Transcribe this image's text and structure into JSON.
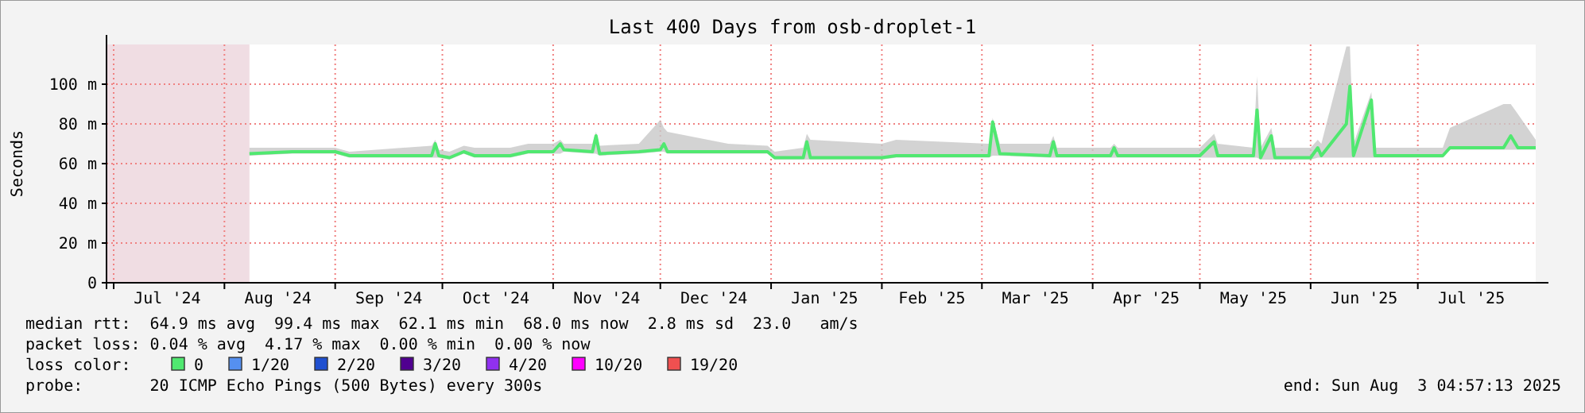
{
  "chart_data": {
    "type": "line",
    "title": "Last 400 Days from osb-droplet-1",
    "ylabel": "Seconds",
    "xlim": [
      "2024-06-29",
      "2025-08-03"
    ],
    "xticks": [
      {
        "value": "2024-07-01",
        "label": null
      },
      {
        "value": "2024-07-16",
        "label": "Jul '24"
      },
      {
        "value": "2024-08-01",
        "label": null
      },
      {
        "value": "2024-08-16",
        "label": "Aug '24"
      },
      {
        "value": "2024-09-01",
        "label": null
      },
      {
        "value": "2024-09-16",
        "label": "Sep '24"
      },
      {
        "value": "2024-10-01",
        "label": null
      },
      {
        "value": "2024-10-16",
        "label": "Oct '24"
      },
      {
        "value": "2024-11-01",
        "label": null
      },
      {
        "value": "2024-11-16",
        "label": "Nov '24"
      },
      {
        "value": "2024-12-01",
        "label": null
      },
      {
        "value": "2024-12-16",
        "label": "Dec '24"
      },
      {
        "value": "2025-01-01",
        "label": null
      },
      {
        "value": "2025-01-16",
        "label": "Jan '25"
      },
      {
        "value": "2025-02-01",
        "label": null
      },
      {
        "value": "2025-02-15",
        "label": "Feb '25"
      },
      {
        "value": "2025-03-01",
        "label": null
      },
      {
        "value": "2025-03-16",
        "label": "Mar '25"
      },
      {
        "value": "2025-04-01",
        "label": null
      },
      {
        "value": "2025-04-16",
        "label": "Apr '25"
      },
      {
        "value": "2025-05-01",
        "label": null
      },
      {
        "value": "2025-05-16",
        "label": "May '25"
      },
      {
        "value": "2025-06-01",
        "label": null
      },
      {
        "value": "2025-06-16",
        "label": "Jun '25"
      },
      {
        "value": "2025-07-01",
        "label": null
      },
      {
        "value": "2025-07-16",
        "label": "Jul '25"
      }
    ],
    "ylim": [
      0,
      120
    ],
    "yticks": [
      0,
      {
        "value": 20,
        "label": "20 m"
      },
      {
        "value": 40,
        "label": "40 m"
      },
      {
        "value": 60,
        "label": "60 m"
      },
      {
        "value": 80,
        "label": "80 m"
      },
      {
        "value": 100,
        "label": "100 m"
      }
    ],
    "grid": true,
    "legend": "bottom",
    "legend_title": "loss color:",
    "bands": [
      {
        "axis": "x",
        "from": "2024-06-29",
        "to": "2024-08-08",
        "color": "#f0dde3"
      }
    ],
    "x": [
      "2024-08-08",
      "2024-08-20",
      "2024-09-01",
      "2024-09-05",
      "2024-09-20",
      "2024-09-28",
      "2024-09-29",
      "2024-09-30",
      "2024-10-03",
      "2024-10-07",
      "2024-10-10",
      "2024-10-20",
      "2024-10-25",
      "2024-11-01",
      "2024-11-03",
      "2024-11-04",
      "2024-11-12",
      "2024-11-13",
      "2024-11-14",
      "2024-11-25",
      "2024-12-01",
      "2024-12-02",
      "2024-12-03",
      "2024-12-20",
      "2024-12-31",
      "2025-01-02",
      "2025-01-10",
      "2025-01-11",
      "2025-01-12",
      "2025-02-01",
      "2025-02-05",
      "2025-03-03",
      "2025-03-04",
      "2025-03-06",
      "2025-03-20",
      "2025-03-21",
      "2025-03-22",
      "2025-04-06",
      "2025-04-07",
      "2025-04-08",
      "2025-05-01",
      "2025-05-05",
      "2025-05-06",
      "2025-05-16",
      "2025-05-17",
      "2025-05-18",
      "2025-05-21",
      "2025-05-22",
      "2025-06-01",
      "2025-06-03",
      "2025-06-04",
      "2025-06-11",
      "2025-06-12",
      "2025-06-13",
      "2025-06-18",
      "2025-06-19",
      "2025-07-08",
      "2025-07-10",
      "2025-07-25",
      "2025-07-27",
      "2025-07-29",
      "2025-08-03"
    ],
    "series": [
      {
        "name": "0",
        "color": "#50e870",
        "values": [
          65,
          66,
          66,
          64,
          64,
          64,
          70,
          64,
          63,
          66,
          64,
          64,
          66,
          66,
          70,
          67,
          66,
          74,
          65,
          66,
          67,
          70,
          66,
          66,
          66,
          63,
          63,
          71,
          63,
          63,
          64,
          64,
          81,
          65,
          64,
          71,
          64,
          64,
          68,
          64,
          64,
          71,
          64,
          64,
          87,
          63,
          74,
          63,
          63,
          68,
          64,
          80,
          99,
          64,
          92,
          64,
          64,
          68,
          68,
          74,
          68,
          68
        ],
        "lower": [
          64,
          65,
          65,
          63,
          63,
          63,
          63,
          63,
          62,
          65,
          63,
          63,
          65,
          65,
          65,
          66,
          65,
          65,
          64,
          65,
          66,
          66,
          65,
          65,
          65,
          62,
          62,
          62,
          62,
          62,
          63,
          63,
          64,
          64,
          63,
          63,
          63,
          63,
          63,
          63,
          63,
          63,
          63,
          63,
          63,
          62,
          62,
          62,
          62,
          63,
          63,
          63,
          63,
          63,
          63,
          63,
          63,
          67,
          67,
          67,
          67,
          67
        ],
        "upper": [
          68,
          68,
          68,
          66,
          68,
          69,
          72,
          67,
          66,
          69,
          68,
          68,
          70,
          70,
          72,
          70,
          70,
          76,
          69,
          70,
          82,
          78,
          76,
          70,
          69,
          66,
          68,
          75,
          72,
          70,
          72,
          70,
          83,
          70,
          70,
          74,
          68,
          68,
          70,
          68,
          68,
          75,
          70,
          68,
          104,
          68,
          78,
          68,
          68,
          72,
          70,
          119,
          119,
          70,
          96,
          68,
          68,
          78,
          90,
          90,
          85,
          72
        ]
      },
      {
        "name": "1/20",
        "color": "#5590f0",
        "values": [
          null,
          null,
          null,
          null,
          null,
          null,
          null,
          null,
          null,
          null,
          null,
          null,
          null,
          null,
          null,
          null,
          null,
          null,
          null,
          null,
          null,
          null,
          null,
          null,
          null,
          null,
          null,
          null,
          null,
          null,
          null,
          null,
          null,
          null,
          null,
          null,
          null,
          null,
          null,
          null,
          null,
          null,
          null,
          null,
          null,
          null,
          null,
          null,
          null,
          null,
          null,
          null,
          null,
          null,
          null,
          null,
          null,
          null,
          null,
          null,
          null,
          null
        ]
      },
      {
        "name": "2/20",
        "color": "#2050d0",
        "values": [
          null,
          null,
          null,
          null,
          null,
          null,
          null,
          null,
          null,
          null,
          null,
          null,
          null,
          null,
          null,
          null,
          null,
          null,
          null,
          null,
          null,
          null,
          null,
          null,
          null,
          null,
          null,
          null,
          null,
          null,
          null,
          null,
          null,
          null,
          null,
          null,
          null,
          null,
          null,
          null,
          null,
          null,
          null,
          null,
          null,
          null,
          null,
          null,
          null,
          null,
          null,
          null,
          null,
          null,
          null,
          null,
          null,
          null,
          null,
          null,
          null,
          null
        ]
      },
      {
        "name": "3/20",
        "color": "#500090",
        "values": [
          null,
          null,
          null,
          null,
          null,
          null,
          null,
          null,
          null,
          null,
          null,
          null,
          null,
          null,
          null,
          null,
          null,
          null,
          null,
          null,
          null,
          null,
          null,
          null,
          null,
          null,
          null,
          null,
          null,
          null,
          null,
          null,
          null,
          null,
          null,
          null,
          null,
          null,
          null,
          null,
          null,
          null,
          null,
          null,
          null,
          null,
          null,
          null,
          null,
          null,
          null,
          null,
          null,
          null,
          null,
          null,
          null,
          null,
          null,
          null,
          null,
          null
        ]
      },
      {
        "name": "4/20",
        "color": "#9030f0",
        "values": [
          null,
          null,
          null,
          null,
          null,
          null,
          null,
          null,
          null,
          null,
          null,
          null,
          null,
          null,
          null,
          null,
          null,
          null,
          null,
          null,
          null,
          null,
          null,
          null,
          null,
          null,
          null,
          null,
          null,
          null,
          null,
          null,
          null,
          null,
          null,
          null,
          null,
          null,
          null,
          null,
          null,
          null,
          null,
          null,
          null,
          null,
          null,
          null,
          null,
          null,
          null,
          null,
          null,
          null,
          null,
          null,
          null,
          null,
          null,
          null,
          null,
          null
        ]
      },
      {
        "name": "10/20",
        "color": "#ff00ff",
        "values": [
          null,
          null,
          null,
          null,
          null,
          null,
          null,
          null,
          null,
          null,
          null,
          null,
          null,
          null,
          null,
          null,
          null,
          null,
          null,
          null,
          null,
          null,
          null,
          null,
          null,
          null,
          null,
          null,
          null,
          null,
          null,
          null,
          null,
          null,
          null,
          null,
          null,
          null,
          null,
          null,
          null,
          null,
          null,
          null,
          null,
          null,
          null,
          null,
          null,
          null,
          null,
          null,
          null,
          null,
          null,
          null,
          null,
          null,
          null,
          null,
          null,
          null
        ]
      },
      {
        "name": "19/20",
        "color": "#f05050",
        "values": [
          null,
          null,
          null,
          null,
          null,
          null,
          null,
          null,
          null,
          null,
          null,
          null,
          null,
          null,
          null,
          null,
          null,
          null,
          null,
          null,
          null,
          null,
          null,
          null,
          null,
          null,
          null,
          null,
          null,
          null,
          null,
          null,
          null,
          null,
          null,
          null,
          null,
          null,
          null,
          null,
          null,
          null,
          null,
          null,
          null,
          null,
          null,
          null,
          null,
          null,
          null,
          null,
          null,
          null,
          null,
          null,
          null,
          null,
          null,
          null,
          null,
          null
        ]
      }
    ],
    "annotations": [
      "median rtt:  64.9 ms avg  99.4 ms max  62.1 ms min  68.0 ms now  2.8 ms sd  23.0   am/s",
      "packet loss: 0.04 % avg  4.17 % max  0.00 % min  0.00 % now",
      "probe:       20 ICMP Echo Pings (500 Bytes) every 300s",
      "end: Sun Aug  3 04:57:13 2025"
    ]
  }
}
